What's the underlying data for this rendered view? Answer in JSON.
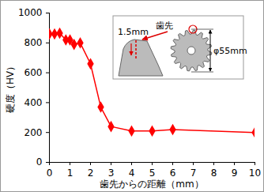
{
  "chart_data": {
    "type": "line",
    "x_label": "歯先からの距離（mm）",
    "y_label": "硬度（HV）",
    "x": [
      0,
      0.25,
      0.5,
      0.8,
      1.0,
      1.2,
      1.5,
      2.0,
      2.5,
      3.0,
      4.0,
      5.0,
      6.0,
      10.0
    ],
    "values": [
      860,
      860,
      865,
      820,
      820,
      790,
      800,
      660,
      370,
      240,
      210,
      210,
      220,
      200
    ],
    "color": "#ff0000",
    "marker": "diamond",
    "line_style": "solid",
    "xlim": [
      0,
      10
    ],
    "xticks": [
      0,
      1,
      2,
      3,
      4,
      5,
      6,
      7,
      8,
      9,
      10
    ],
    "ylim": [
      0,
      1000
    ],
    "yticks": [
      0,
      200,
      400,
      600,
      800,
      1000
    ],
    "grid": false,
    "annotations": [
      "1.5mm",
      "歯先",
      "φ55mm"
    ]
  }
}
